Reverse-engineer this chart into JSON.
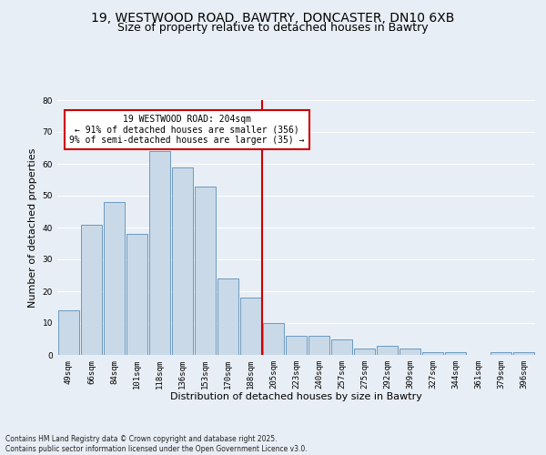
{
  "title_line1": "19, WESTWOOD ROAD, BAWTRY, DONCASTER, DN10 6XB",
  "title_line2": "Size of property relative to detached houses in Bawtry",
  "xlabel": "Distribution of detached houses by size in Bawtry",
  "ylabel": "Number of detached properties",
  "footnote": "Contains HM Land Registry data © Crown copyright and database right 2025.\nContains public sector information licensed under the Open Government Licence v3.0.",
  "bin_labels": [
    "49sqm",
    "66sqm",
    "84sqm",
    "101sqm",
    "118sqm",
    "136sqm",
    "153sqm",
    "170sqm",
    "188sqm",
    "205sqm",
    "223sqm",
    "240sqm",
    "257sqm",
    "275sqm",
    "292sqm",
    "309sqm",
    "327sqm",
    "344sqm",
    "361sqm",
    "379sqm",
    "396sqm"
  ],
  "bar_heights": [
    14,
    41,
    48,
    38,
    64,
    59,
    53,
    24,
    18,
    10,
    6,
    6,
    5,
    2,
    3,
    2,
    1,
    1,
    0,
    1,
    1
  ],
  "bar_color": "#c9d9e8",
  "bar_edge_color": "#5b8db8",
  "vline_x_idx": 9,
  "vline_color": "#cc0000",
  "annotation_text": "19 WESTWOOD ROAD: 204sqm\n← 91% of detached houses are smaller (356)\n9% of semi-detached houses are larger (35) →",
  "annotation_box_color": "#ffffff",
  "annotation_box_edge": "#cc0000",
  "ylim": [
    0,
    80
  ],
  "yticks": [
    0,
    10,
    20,
    30,
    40,
    50,
    60,
    70,
    80
  ],
  "background_color": "#e8eef5",
  "plot_bg_color": "#e8eef5",
  "grid_color": "#ffffff",
  "title_fontsize": 10,
  "subtitle_fontsize": 9,
  "axis_label_fontsize": 8,
  "tick_fontsize": 6.5,
  "annotation_fontsize": 7
}
